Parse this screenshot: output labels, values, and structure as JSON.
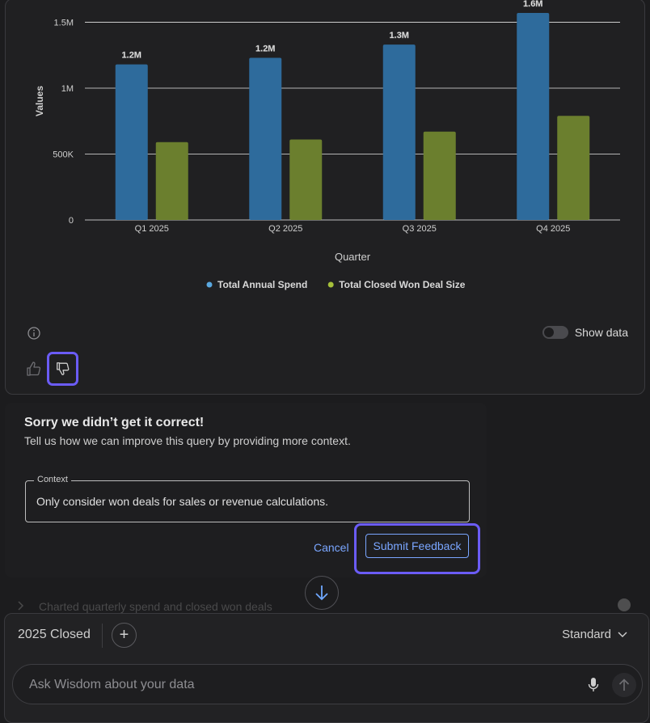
{
  "chart_data": {
    "type": "bar",
    "categories": [
      "Q1 2025",
      "Q2 2025",
      "Q3 2025",
      "Q4 2025"
    ],
    "series": [
      {
        "name": "Total Annual Spend",
        "values": [
          1180000,
          1230000,
          1330000,
          1570000
        ],
        "labels": [
          "1.2M",
          "1.2M",
          "1.3M",
          "1.6M"
        ],
        "color": "#2e6b9c"
      },
      {
        "name": "Total Closed Won Deal Size",
        "values": [
          590000,
          610000,
          670000,
          790000
        ],
        "color": "#6b7f2e"
      }
    ],
    "xlabel": "Quarter",
    "ylabel": "Values",
    "ylim": [
      0,
      1650000
    ],
    "yticks": [
      0,
      500000,
      1000000,
      1500000
    ],
    "ytick_labels": [
      "0",
      "500K",
      "1M",
      "1.5M"
    ],
    "legend_position": "bottom",
    "legend_dot_colors": [
      "#5aa8e0",
      "#a6c03a"
    ],
    "grid": true
  },
  "chart_footer": {
    "info_icon": "info-icon",
    "show_data_label": "Show data",
    "show_data_on": false,
    "thumbs_up_icon": "thumbs-up-icon",
    "thumbs_down_icon": "thumbs-down-icon"
  },
  "feedback": {
    "title": "Sorry we didn’t get it correct!",
    "subtitle": "Tell us how we can improve this query by providing more context.",
    "context_label": "Context",
    "context_value": "Only consider won deals for sales or revenue calculations.",
    "cancel_label": "Cancel",
    "submit_label": "Submit Feedback"
  },
  "history_row": {
    "text": "Charted quarterly spend and closed won deals"
  },
  "composer": {
    "context_chip": "2025 Closed",
    "add_label": "+",
    "mode_label": "Standard",
    "input_placeholder": "Ask Wisdom about your data"
  },
  "colors": {
    "accent": "#6b5cf6",
    "link": "#7aa6ff"
  }
}
